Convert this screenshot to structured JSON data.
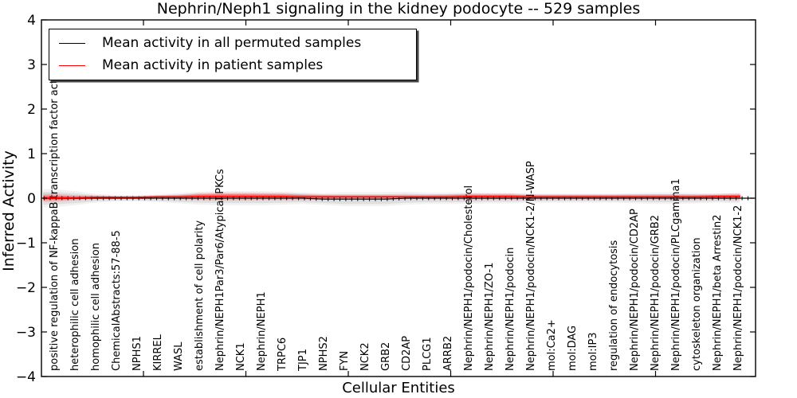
{
  "figure": {
    "title": "Nephrin/Neph1 signaling in the kidney podocyte -- 529 samples",
    "xlabel": "Cellular Entities",
    "ylabel": "Inferred Activity"
  },
  "legend": {
    "items": [
      {
        "label": "Mean activity in all permuted samples",
        "color": "#000000"
      },
      {
        "label": "Mean activity in patient samples",
        "color": "#ff0000"
      }
    ],
    "position": "upper left"
  },
  "colors": {
    "background": "#ffffff",
    "axis": "#000000",
    "permuted_line": "#000000",
    "patient_line": "#ff0000",
    "permuted_band": "#000000",
    "patient_band": "#ff0000"
  },
  "chart_data": {
    "type": "line",
    "title": "Nephrin/Neph1 signaling in the kidney podocyte -- 529 samples",
    "xlabel": "Cellular Entities",
    "ylabel": "Inferred Activity",
    "ylim": [
      -4,
      4
    ],
    "yticks": [
      4,
      3,
      2,
      1,
      0,
      -1,
      -2,
      -3,
      -4
    ],
    "grid": false,
    "legend_position": "upper left",
    "categories": [
      "positive regulation of NF-kappaB transcription factor activity",
      "heterophilic cell adhesion",
      "homophilic cell adhesion",
      "ChemicalAbstracts:57-88-5",
      "NPHS1",
      "KIRREL",
      "WASL",
      "establishment of cell polarity",
      "Nephrin/NEPH1Par3/Par6/Atypical PKCs",
      "NCK1",
      "Nephrin/NEPH1",
      "TRPC6",
      "TJP1",
      "NPHS2",
      "FYN",
      "NCK2",
      "GRB2",
      "CD2AP",
      "PLCG1",
      "ARRB2",
      "Nephrin/NEPH1/podocin/Cholesterol",
      "Nephrin/NEPH1/ZO-1",
      "Nephrin/NEPH1/podocin",
      "Nephrin/NEPH1/podocin/NCK1-2/N-WASP",
      "mol:Ca2+",
      "mol:DAG",
      "mol:IP3",
      "regulation of endocytosis",
      "Nephrin/NEPH1/podocin/CD2AP",
      "Nephrin/NEPH1/podocin/GRB2",
      "Nephrin/NEPH1/podocin/PLCgamma1",
      "cytoskeleton organization",
      "Nephrin/NEPH1/beta Arrestin2",
      "Nephrin/NEPH1/podocin/NCK1-2"
    ],
    "series": [
      {
        "name": "Mean activity in all permuted samples",
        "color": "#000000",
        "values": [
          0,
          0,
          0,
          0,
          0,
          0,
          0,
          0,
          0,
          0,
          0,
          0,
          0,
          -0.02,
          -0.02,
          -0.02,
          -0.02,
          0,
          0,
          0,
          0,
          0,
          0,
          0,
          0,
          0,
          0,
          0,
          0,
          0,
          0,
          0,
          0,
          0
        ],
        "band_halfwidth": [
          0.14,
          0.11,
          0.07,
          0.05,
          0.05,
          0.06,
          0.08,
          0.1,
          0.11,
          0.11,
          0.11,
          0.1,
          0.09,
          0.09,
          0.11,
          0.11,
          0.11,
          0.1,
          0.09,
          0.09,
          0.09,
          0.08,
          0.08,
          0.07,
          0.07,
          0.07,
          0.07,
          0.07,
          0.08,
          0.09,
          0.09,
          0.08,
          0.07,
          0.08
        ]
      },
      {
        "name": "Mean activity in patient samples",
        "color": "#ff0000",
        "values": [
          0.01,
          0.01,
          0.02,
          0.02,
          0.02,
          0.03,
          0.03,
          0.04,
          0.04,
          0.04,
          0.04,
          0.04,
          0.03,
          0.03,
          0.03,
          0.03,
          0.03,
          0.03,
          0.03,
          0.03,
          0.04,
          0.04,
          0.04,
          0.03,
          0.03,
          0.03,
          0.03,
          0.03,
          0.03,
          0.03,
          0.03,
          0.03,
          0.04,
          0.04
        ],
        "band_halfwidth": [
          0.09,
          0.06,
          0.04,
          0.03,
          0.03,
          0.04,
          0.05,
          0.08,
          0.09,
          0.09,
          0.08,
          0.08,
          0.07,
          0.06,
          0.05,
          0.05,
          0.05,
          0.05,
          0.05,
          0.06,
          0.07,
          0.07,
          0.07,
          0.06,
          0.06,
          0.06,
          0.06,
          0.06,
          0.06,
          0.06,
          0.06,
          0.06,
          0.06,
          0.07
        ]
      }
    ]
  }
}
